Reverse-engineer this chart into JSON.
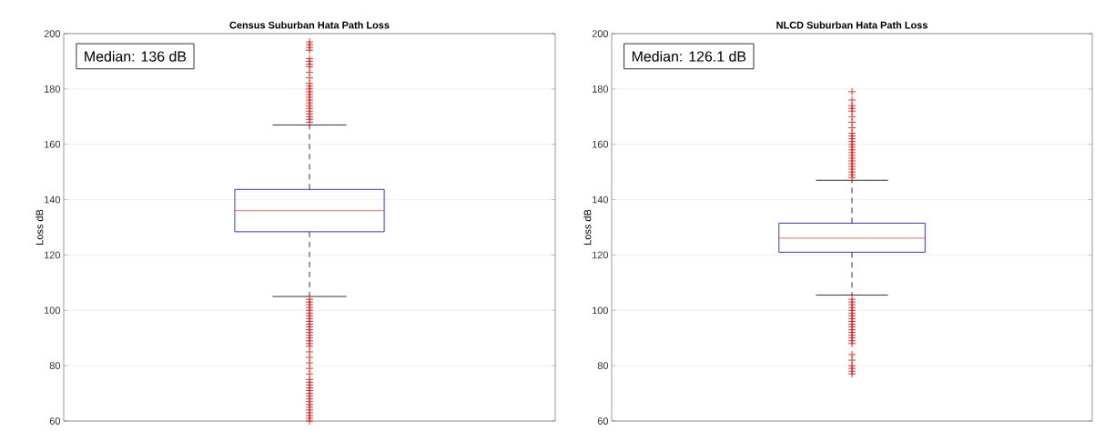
{
  "chart_data": [
    {
      "type": "box",
      "title": "Census Suburban Hata Path Loss",
      "ylabel": "Loss dB",
      "categories": [
        null
      ],
      "ylim": [
        60,
        200
      ],
      "yticks": [
        60,
        80,
        100,
        120,
        140,
        160,
        180,
        200
      ],
      "grid": "y",
      "tick_labels": "y",
      "marker": "cross",
      "annotations": [
        "Median: 136 dB"
      ],
      "series": [
        {
          "color": "#0000ff",
          "boxes": [
            {
              "low": 105,
              "q1": 128.4,
              "median": 136,
              "q3": 143.7,
              "high": 167,
              "outliers": [
                168,
                169,
                170,
                171,
                172,
                173,
                174,
                175,
                176,
                177,
                178,
                179,
                180,
                181,
                182,
                184,
                186,
                188,
                189,
                190,
                191,
                194,
                195,
                196,
                197,
                60,
                61,
                62,
                63,
                64,
                65,
                66,
                67,
                68,
                69,
                70,
                71,
                72,
                73,
                74,
                75,
                77,
                79,
                81,
                83,
                85,
                87,
                88,
                89,
                90,
                91,
                92,
                93,
                94,
                95,
                96,
                97,
                98,
                99,
                100,
                101,
                102,
                103,
                104
              ]
            }
          ]
        }
      ]
    },
    {
      "type": "box",
      "title": "NLCD Suburban Hata Path Loss",
      "ylabel": "Loss dB",
      "categories": [
        null
      ],
      "ylim": [
        60,
        200
      ],
      "yticks": [
        60,
        80,
        100,
        120,
        140,
        160,
        180,
        200
      ],
      "grid": "y",
      "tick_labels": "y",
      "marker": "cross",
      "annotations": [
        "Median: 126.1 dB"
      ],
      "series": [
        {
          "color": "#0000ff",
          "boxes": [
            {
              "low": 105.5,
              "q1": 121,
              "median": 126.1,
              "q3": 131.5,
              "high": 147,
              "outliers": [
                148,
                149,
                150,
                151,
                152,
                153,
                154,
                155,
                156,
                157,
                158,
                159,
                160,
                161,
                162,
                163,
                164,
                166,
                168,
                170,
                172,
                173,
                174,
                176,
                179,
                104,
                103,
                102,
                101,
                100,
                99,
                98,
                97,
                96,
                95,
                94,
                93,
                92,
                91,
                90,
                89,
                88,
                84,
                82,
                80,
                79,
                78,
                77
              ]
            }
          ]
        }
      ]
    }
  ]
}
